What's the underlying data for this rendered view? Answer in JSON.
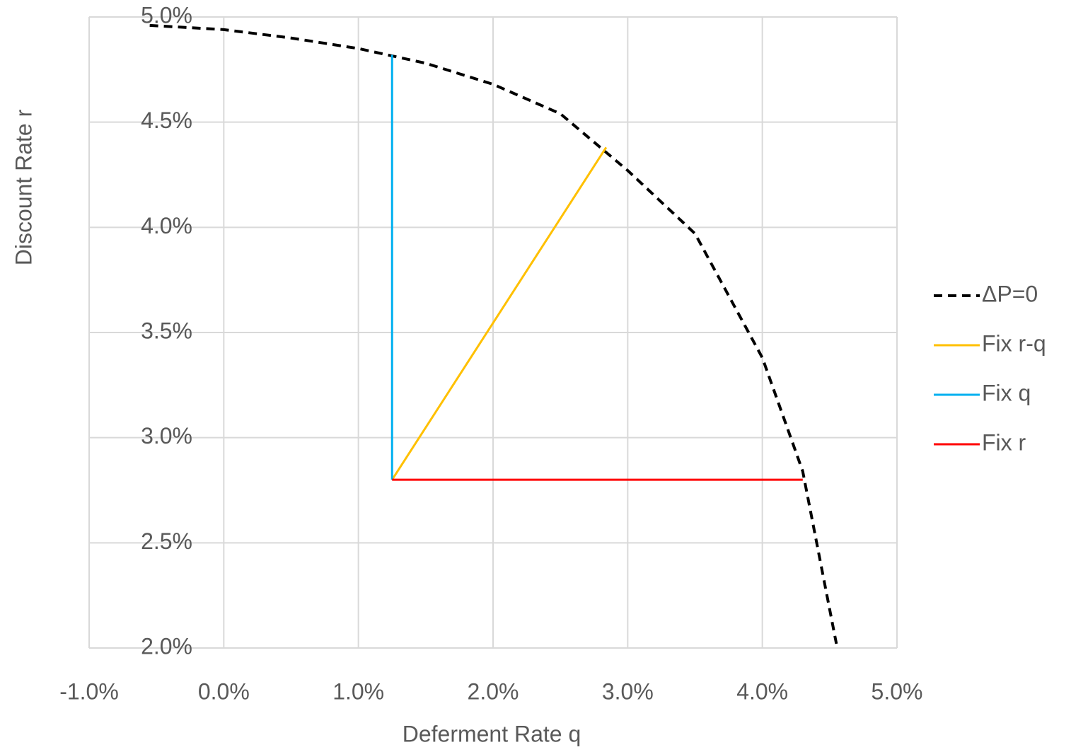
{
  "chart_data": {
    "type": "line",
    "x_label": "Deferment Rate  q",
    "y_label": "Discount Rate r",
    "xlim": [
      -1,
      5
    ],
    "xticks": [
      {
        "value": -1,
        "label": "-1.0%"
      },
      {
        "value": 0,
        "label": "0.0%"
      },
      {
        "value": 1,
        "label": "1.0%"
      },
      {
        "value": 2,
        "label": "2.0%"
      },
      {
        "value": 3,
        "label": "3.0%"
      },
      {
        "value": 4,
        "label": "4.0%"
      },
      {
        "value": 5,
        "label": "5.0%"
      }
    ],
    "ylim": [
      2,
      5
    ],
    "yticks": [
      {
        "value": 2,
        "label": "2.0%"
      },
      {
        "value": 2.5,
        "label": "2.5%"
      },
      {
        "value": 3,
        "label": "3.0%"
      },
      {
        "value": 3.5,
        "label": "3.5%"
      },
      {
        "value": 4,
        "label": "4.0%"
      },
      {
        "value": 4.5,
        "label": "4.5%"
      },
      {
        "value": 5,
        "label": "5.0%"
      }
    ],
    "grid": true,
    "legend": "right",
    "series": [
      {
        "name": "ΔP=0",
        "color": "#000000",
        "dashed": true,
        "x": [
          -0.55,
          0.0,
          0.5,
          1.0,
          1.5,
          2.0,
          2.5,
          3.0,
          3.5,
          4.0,
          4.3,
          4.55
        ],
        "values": [
          4.96,
          4.94,
          4.9,
          4.85,
          4.78,
          4.68,
          4.54,
          4.27,
          3.97,
          3.38,
          2.84,
          2.02
        ]
      },
      {
        "name": "Fix r-q",
        "color": "#ffc000",
        "x": [
          1.25,
          2.84
        ],
        "values": [
          2.8,
          4.38
        ]
      },
      {
        "name": "Fix q",
        "color": "#00b0f0",
        "x": [
          1.25,
          1.25
        ],
        "values": [
          2.8,
          4.82
        ]
      },
      {
        "name": "Fix r",
        "color": "#ff0000",
        "x": [
          1.25,
          4.3
        ],
        "values": [
          2.8,
          2.8
        ]
      }
    ]
  }
}
